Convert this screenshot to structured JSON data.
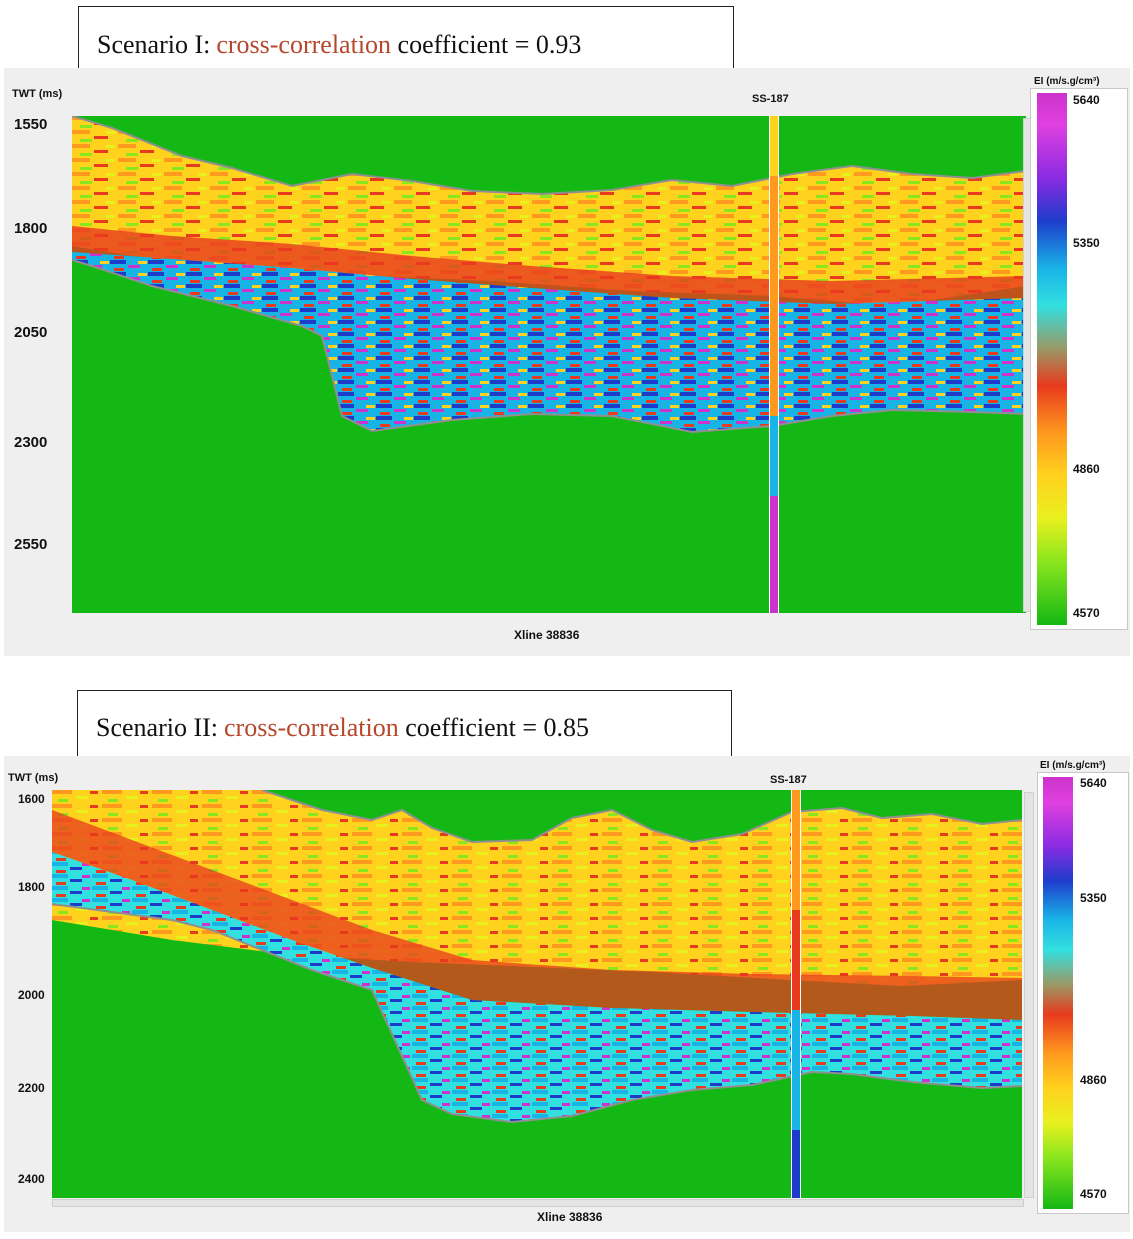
{
  "panels": [
    {
      "caption": {
        "prefix": "Scenario I: ",
        "accent": "cross-correlation",
        "suffix": " coefficient = 0.93"
      },
      "y_axis_label": "TWT (ms)",
      "y_ticks": [
        "1550",
        "1800",
        "2050",
        "2300",
        "2550"
      ],
      "well_label": "SS-187",
      "x_label": "Xline 38836",
      "colorbar": {
        "title": "EI (m/s.g/cm³)",
        "values": [
          "5640",
          "5350",
          "4860",
          "4570"
        ]
      }
    },
    {
      "caption": {
        "prefix": "Scenario II: ",
        "accent": "cross-correlation",
        "suffix": " coefficient = 0.85"
      },
      "y_axis_label": "TWT (ms)",
      "y_ticks": [
        "1600",
        "1800",
        "2000",
        "2200",
        "2400"
      ],
      "well_label": "SS-187",
      "x_label": "Xline 38836",
      "colorbar": {
        "title": "EI (m/s.g/cm³)",
        "values": [
          "5640",
          "5350",
          "4860",
          "4570"
        ]
      }
    }
  ],
  "colors": {
    "background_green": "#14b814",
    "colorbar_stops": [
      "#cc33cc",
      "#8a2be2",
      "#1e3ccc",
      "#19b4e6",
      "#33e0e0",
      "#999966",
      "#e83a1e",
      "#ff9a1e",
      "#ffd21e",
      "#e8f01e",
      "#8ce61e",
      "#14b814"
    ]
  }
}
